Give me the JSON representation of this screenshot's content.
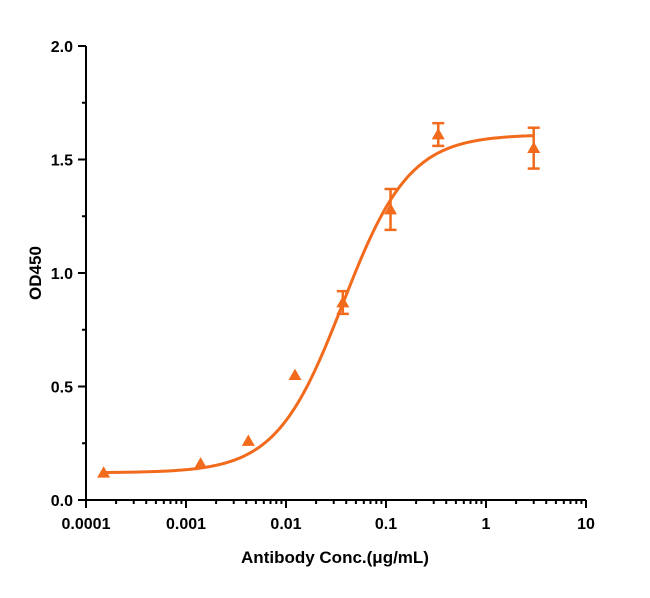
{
  "chart_data": {
    "type": "scatter",
    "title": "",
    "xlabel": "Antibody Conc.(μg/mL)",
    "ylabel": "OD450",
    "x_scale": "log",
    "xlim": [
      0.0001,
      10
    ],
    "ylim": [
      0.0,
      2.0
    ],
    "x_ticks": [
      "0.0001",
      "0.001",
      "0.01",
      "0.1",
      "1",
      "10"
    ],
    "y_ticks": [
      "0.0",
      "0.5",
      "1.0",
      "1.5",
      "2.0"
    ],
    "grid": false,
    "legend": "none",
    "color": "#F26A1B",
    "series": [
      {
        "marker": "triangle",
        "x": [
          0.00015,
          0.0014,
          0.0042,
          0.0123,
          0.037,
          0.111,
          0.333,
          3.0
        ],
        "y": [
          0.12,
          0.16,
          0.26,
          0.55,
          0.87,
          1.28,
          1.61,
          1.55
        ],
        "error": [
          0.0,
          0.0,
          0.0,
          0.0,
          0.05,
          0.09,
          0.05,
          0.09
        ]
      }
    ],
    "fit": {
      "type": "four-parameter logistic",
      "bottom": 0.12,
      "top": 1.61,
      "ec50": 0.037,
      "hill": 1.3
    }
  }
}
